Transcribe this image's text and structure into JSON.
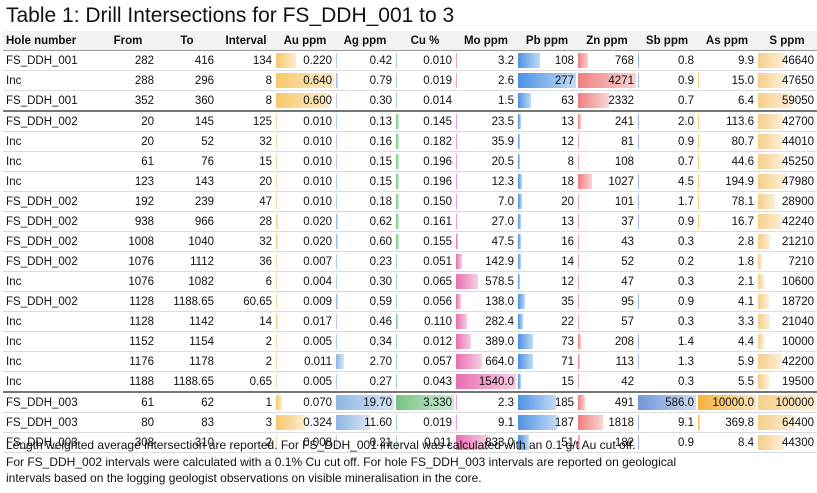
{
  "title": "Table 1: Drill Intersections for FS_DDH_001 to 3",
  "headers": [
    "Hole number",
    "From",
    "To",
    "Interval",
    "Au ppm",
    "Ag ppm",
    "Cu %",
    "Mo ppm",
    "Pb ppm",
    "Zn ppm",
    "Sb ppm",
    "As ppm",
    "S ppm"
  ],
  "colors": {
    "Au": "#f7c86a",
    "Ag": "#8fb6e3",
    "Cu": "#74c483",
    "Mo": "#e76fb0",
    "Pb": "#4c92e3",
    "Zn": "#f07f7f",
    "Sb": "#6f96d6",
    "As": "#f6b13b",
    "S": "#f7cf8a"
  },
  "bar_max": {
    "Au": 0.64,
    "Ag": 19.7,
    "Cu": 3.33,
    "Mo": 1540,
    "Pb": 277,
    "Zn": 4271,
    "Sb": 586,
    "As": 10000,
    "S": 100000
  },
  "rows": [
    {
      "hole": "FS_DDH_001",
      "from": "282",
      "to": "416",
      "interval": "134",
      "au": "0.220",
      "ag": "0.42",
      "cu": "0.010",
      "mo": "3.2",
      "pb": "108",
      "zn": "768",
      "sb": "0.8",
      "as": "9.9",
      "s": "46640"
    },
    {
      "hole": "Inc",
      "from": "288",
      "to": "296",
      "interval": "8",
      "au": "0.640",
      "ag": "0.79",
      "cu": "0.019",
      "mo": "2.6",
      "pb": "277",
      "zn": "4271",
      "sb": "0.9",
      "as": "15.0",
      "s": "47650"
    },
    {
      "hole": "FS_DDH_001",
      "from": "352",
      "to": "360",
      "interval": "8",
      "au": "0.600",
      "ag": "0.30",
      "cu": "0.014",
      "mo": "1.5",
      "pb": "63",
      "zn": "2332",
      "sb": "0.7",
      "as": "6.4",
      "s": "59050",
      "sep": true
    },
    {
      "hole": "FS_DDH_002",
      "from": "20",
      "to": "145",
      "interval": "125",
      "au": "0.010",
      "ag": "0.13",
      "cu": "0.145",
      "mo": "23.5",
      "pb": "13",
      "zn": "241",
      "sb": "2.0",
      "as": "113.6",
      "s": "42700"
    },
    {
      "hole": "Inc",
      "from": "20",
      "to": "52",
      "interval": "32",
      "au": "0.010",
      "ag": "0.16",
      "cu": "0.182",
      "mo": "35.9",
      "pb": "12",
      "zn": "81",
      "sb": "0.9",
      "as": "80.7",
      "s": "44010"
    },
    {
      "hole": "Inc",
      "from": "61",
      "to": "76",
      "interval": "15",
      "au": "0.010",
      "ag": "0.15",
      "cu": "0.196",
      "mo": "20.5",
      "pb": "8",
      "zn": "108",
      "sb": "0.7",
      "as": "44.6",
      "s": "45250"
    },
    {
      "hole": "Inc",
      "from": "123",
      "to": "143",
      "interval": "20",
      "au": "0.010",
      "ag": "0.15",
      "cu": "0.196",
      "mo": "12.3",
      "pb": "18",
      "zn": "1027",
      "sb": "4.5",
      "as": "194.9",
      "s": "47980"
    },
    {
      "hole": "FS_DDH_002",
      "from": "192",
      "to": "239",
      "interval": "47",
      "au": "0.010",
      "ag": "0.18",
      "cu": "0.150",
      "mo": "7.0",
      "pb": "20",
      "zn": "101",
      "sb": "1.7",
      "as": "78.1",
      "s": "28900"
    },
    {
      "hole": "FS_DDH_002",
      "from": "938",
      "to": "966",
      "interval": "28",
      "au": "0.020",
      "ag": "0.62",
      "cu": "0.161",
      "mo": "27.0",
      "pb": "13",
      "zn": "37",
      "sb": "0.9",
      "as": "16.7",
      "s": "42240"
    },
    {
      "hole": "FS_DDH_002",
      "from": "1008",
      "to": "1040",
      "interval": "32",
      "au": "0.020",
      "ag": "0.60",
      "cu": "0.155",
      "mo": "47.5",
      "pb": "16",
      "zn": "43",
      "sb": "0.3",
      "as": "2.8",
      "s": "21210"
    },
    {
      "hole": "FS_DDH_002",
      "from": "1076",
      "to": "1112",
      "interval": "36",
      "au": "0.007",
      "ag": "0.23",
      "cu": "0.051",
      "mo": "142.9",
      "pb": "14",
      "zn": "52",
      "sb": "0.2",
      "as": "1.8",
      "s": "7210"
    },
    {
      "hole": "Inc",
      "from": "1076",
      "to": "1082",
      "interval": "6",
      "au": "0.004",
      "ag": "0.30",
      "cu": "0.065",
      "mo": "578.5",
      "pb": "12",
      "zn": "47",
      "sb": "0.3",
      "as": "2.1",
      "s": "10600"
    },
    {
      "hole": "FS_DDH_002",
      "from": "1128",
      "to": "1188.65",
      "interval": "60.65",
      "au": "0.009",
      "ag": "0.59",
      "cu": "0.056",
      "mo": "138.0",
      "pb": "35",
      "zn": "95",
      "sb": "0.9",
      "as": "4.1",
      "s": "18720"
    },
    {
      "hole": "Inc",
      "from": "1128",
      "to": "1142",
      "interval": "14",
      "au": "0.017",
      "ag": "0.46",
      "cu": "0.110",
      "mo": "282.4",
      "pb": "22",
      "zn": "57",
      "sb": "0.3",
      "as": "3.3",
      "s": "21040"
    },
    {
      "hole": "Inc",
      "from": "1152",
      "to": "1154",
      "interval": "2",
      "au": "0.005",
      "ag": "0.34",
      "cu": "0.012",
      "mo": "389.0",
      "pb": "73",
      "zn": "208",
      "sb": "1.4",
      "as": "4.4",
      "s": "10000"
    },
    {
      "hole": "Inc",
      "from": "1176",
      "to": "1178",
      "interval": "2",
      "au": "0.011",
      "ag": "2.70",
      "cu": "0.057",
      "mo": "664.0",
      "pb": "71",
      "zn": "113",
      "sb": "1.3",
      "as": "5.9",
      "s": "42200"
    },
    {
      "hole": "Inc",
      "from": "1188",
      "to": "1188.65",
      "interval": "0.65",
      "au": "0.005",
      "ag": "0.27",
      "cu": "0.043",
      "mo": "1540.0",
      "pb": "15",
      "zn": "42",
      "sb": "0.3",
      "as": "5.5",
      "s": "19500",
      "sep": true
    },
    {
      "hole": "FS_DDH_003",
      "from": "61",
      "to": "62",
      "interval": "1",
      "au": "0.070",
      "ag": "19.70",
      "cu": "3.330",
      "mo": "2.3",
      "pb": "185",
      "zn": "491",
      "sb": "586.0",
      "as": "10000.0",
      "s": "100000"
    },
    {
      "hole": "FS_DDH_003",
      "from": "80",
      "to": "83",
      "interval": "3",
      "au": "0.324",
      "ag": "11.60",
      "cu": "0.019",
      "mo": "9.1",
      "pb": "187",
      "zn": "1818",
      "sb": "9.1",
      "as": "369.8",
      "s": "64400"
    },
    {
      "hole": "FS_DDH_003",
      "from": "308",
      "to": "310",
      "interval": "2",
      "au": "0.008",
      "ag": "0.21",
      "cu": "0.011",
      "mo": "833.0",
      "pb": "51",
      "zn": "182",
      "sb": "0.9",
      "as": "8.4",
      "s": "44300"
    }
  ],
  "notes": [
    "Length weighted average intersection are reported.  For FS_DDH_001 interval was calculated with an 0.1 g/t Au cut off.",
    "For FS_DDH_002 intervals were calculated with a 0.1% Cu cut off.  For hole FS_DDH_003 intervals are reported on geological",
    "intervals based on the logging geologist observations on visible mineralisation in the core."
  ]
}
